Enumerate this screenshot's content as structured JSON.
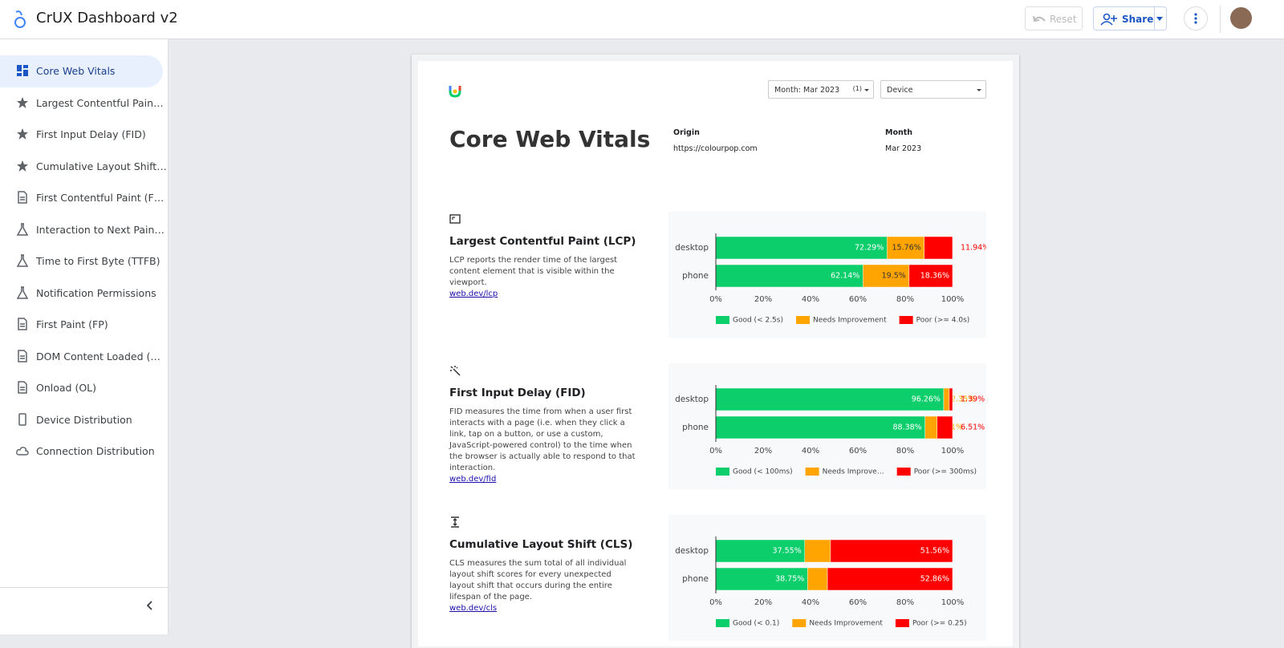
{
  "header": {
    "title": "CrUX Dashboard v2",
    "reset": "Reset",
    "share": "Share"
  },
  "sidebar": {
    "items": [
      "Core Web Vitals",
      "Largest Contentful Pain…",
      "First Input Delay (FID)",
      "Cumulative Layout Shift…",
      "First Contentful Paint (F…",
      "Interaction to Next Pain…",
      "Time to First Byte (TTFB)",
      "Notification Permissions",
      "First Paint (FP)",
      "DOM Content Loaded (…",
      "Onload (OL)",
      "Device Distribution",
      "Connection Distribution"
    ]
  },
  "report": {
    "month_filter": "Month: Mar 2023",
    "month_filter_count": "(1)",
    "device_filter": "Device",
    "title": "Core Web Vitals",
    "origin_label": "Origin",
    "origin": "https://colourpop.com",
    "month_label": "Month",
    "month": "Mar 2023"
  },
  "sections": [
    {
      "title": "Largest Contentful Paint (LCP)",
      "description": "LCP reports the render time of the largest content element that is visible within the viewport.",
      "link": "web.dev/lcp"
    },
    {
      "title": "First Input Delay (FID)",
      "description": "FID measures the time from when a user first interacts with a page (i.e. when they click a link, tap on a button, or use a custom, JavaScript-powered control) to the time when the browser is actually able to respond to that interaction.",
      "link": "web.dev/fid"
    },
    {
      "title": "Cumulative Layout Shift (CLS)",
      "description": "CLS measures the sum total of all individual layout shift scores for every unexpected layout shift that occurs during the entire lifespan of the page.",
      "link": "web.dev/cls"
    }
  ],
  "chart_data": [
    {
      "type": "bar",
      "orientation": "horizontal",
      "stacked": true,
      "grid": false,
      "categories": [
        "desktop",
        "phone"
      ],
      "series": [
        {
          "name": "Good (< 2.5s)",
          "color": "#0cce6b",
          "values": [
            72.29,
            62.14
          ],
          "value_labels": [
            "72.29%",
            "62.14%"
          ]
        },
        {
          "name": "Needs Improvement",
          "color": "#ffa400",
          "values": [
            15.76,
            19.5
          ],
          "value_labels": [
            "15.76%",
            "19.5%"
          ]
        },
        {
          "name": "Poor (>= 4.0s)",
          "color": "#ff0000",
          "values": [
            11.94,
            18.36
          ],
          "value_labels": [
            "11.94%",
            "18.36%"
          ]
        }
      ],
      "xlim": [
        0,
        100
      ],
      "xticks": [
        {
          "value": 0,
          "label": "0%"
        },
        {
          "value": 20,
          "label": "20%"
        },
        {
          "value": 40,
          "label": "40%"
        },
        {
          "value": 60,
          "label": "60%"
        },
        {
          "value": 80,
          "label": "80%"
        },
        {
          "value": 100,
          "label": "100%"
        }
      ]
    },
    {
      "type": "bar",
      "orientation": "horizontal",
      "stacked": true,
      "grid": false,
      "categories": [
        "desktop",
        "phone"
      ],
      "series": [
        {
          "name": "Good (< 100ms)",
          "color": "#0cce6b",
          "values": [
            96.26,
            88.38
          ],
          "value_labels": [
            "96.26%",
            "88.38%"
          ]
        },
        {
          "name": "Needs Improve…",
          "color": "#ffa400",
          "values": [
            2.35,
            5.11
          ],
          "value_labels": [
            "2.35%",
            "5.11%"
          ]
        },
        {
          "name": "Poor (>= 300ms)",
          "color": "#ff0000",
          "values": [
            1.39,
            6.51
          ],
          "value_labels": [
            "1.39%",
            "6.51%"
          ]
        }
      ],
      "xlim": [
        0,
        100
      ],
      "xticks": [
        {
          "value": 0,
          "label": "0%"
        },
        {
          "value": 20,
          "label": "20%"
        },
        {
          "value": 40,
          "label": "40%"
        },
        {
          "value": 60,
          "label": "60%"
        },
        {
          "value": 80,
          "label": "80%"
        },
        {
          "value": 100,
          "label": "100%"
        }
      ]
    },
    {
      "type": "bar",
      "orientation": "horizontal",
      "stacked": true,
      "grid": false,
      "categories": [
        "desktop",
        "phone"
      ],
      "series": [
        {
          "name": "Good (< 0.1)",
          "color": "#0cce6b",
          "values": [
            37.55,
            38.75
          ],
          "value_labels": [
            "37.55%",
            "38.75%"
          ]
        },
        {
          "name": "Needs Improvement",
          "color": "#ffa400",
          "values": [
            10.89,
            8.39
          ],
          "value_labels": [
            "10.89%",
            "8.39%"
          ]
        },
        {
          "name": "Poor (>= 0.25)",
          "color": "#ff0000",
          "values": [
            51.56,
            52.86
          ],
          "value_labels": [
            "51.56%",
            "52.86%"
          ]
        }
      ],
      "xlim": [
        0,
        100
      ],
      "xticks": [
        {
          "value": 0,
          "label": "0%"
        },
        {
          "value": 20,
          "label": "20%"
        },
        {
          "value": 40,
          "label": "40%"
        },
        {
          "value": 60,
          "label": "60%"
        },
        {
          "value": 80,
          "label": "80%"
        },
        {
          "value": 100,
          "label": "100%"
        }
      ]
    }
  ]
}
